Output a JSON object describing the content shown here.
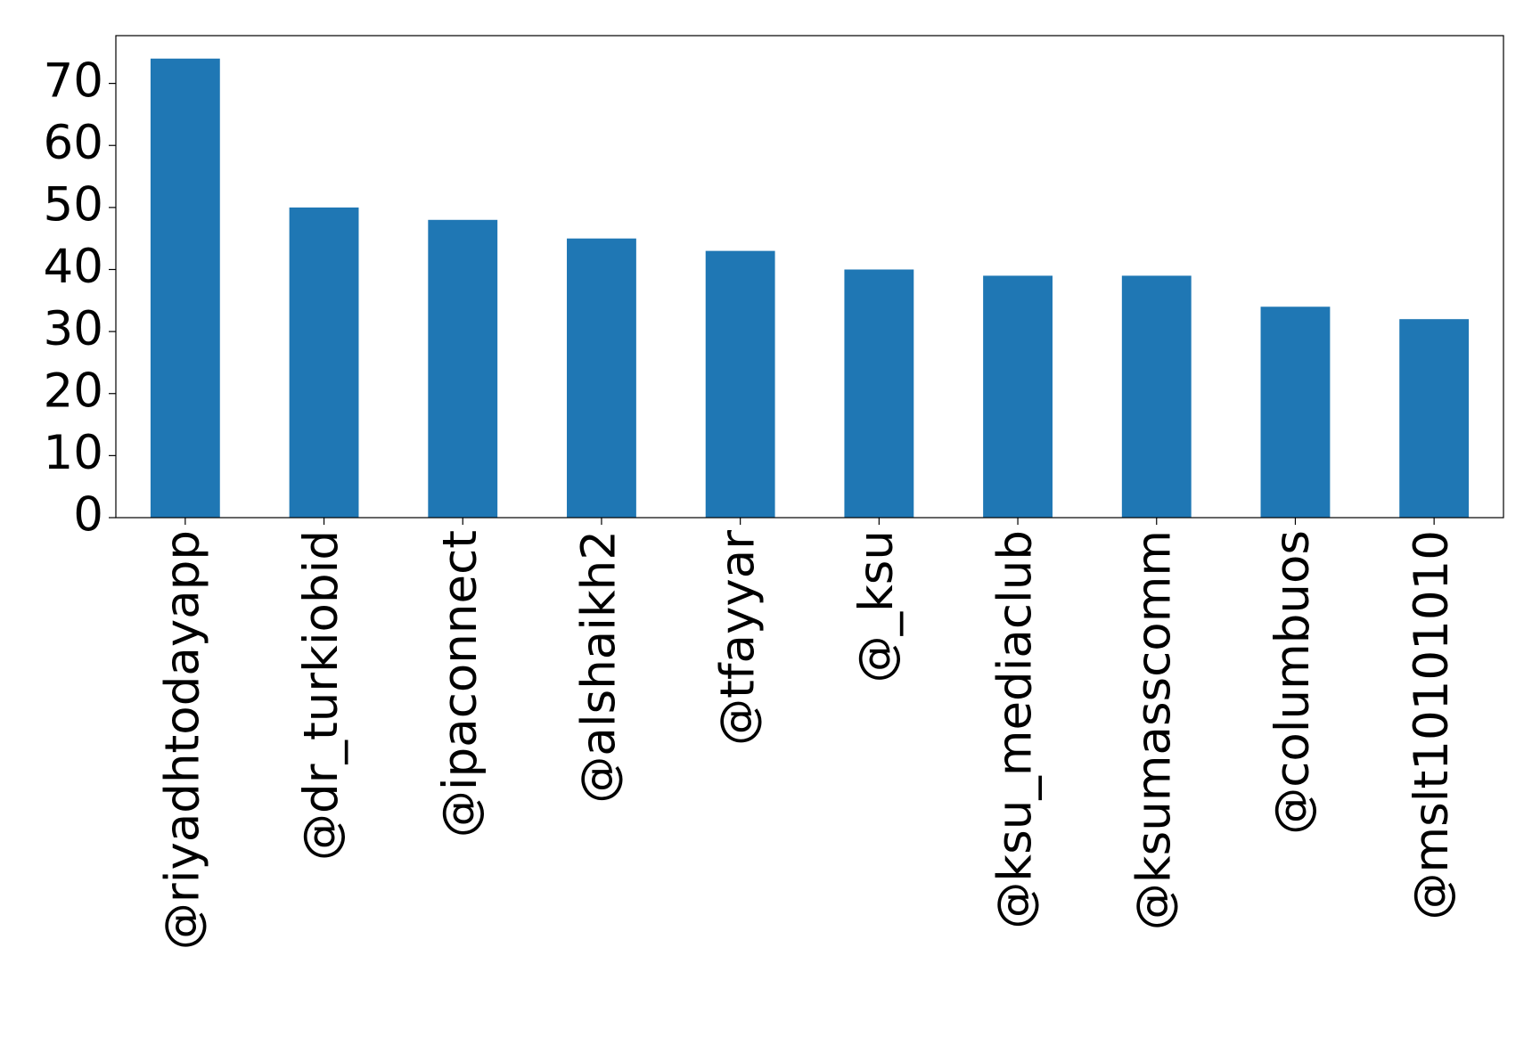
{
  "chart_data": {
    "type": "bar",
    "categories": [
      "@riyadhtodayapp",
      "@dr_turkiobid",
      "@ipaconnect",
      "@alshaikh2",
      "@tfayyar",
      "@_ksu",
      "@ksu_mediaclub",
      "@ksumasscomm",
      "@columbuos",
      "@mslt10101010"
    ],
    "values": [
      74,
      50,
      48,
      45,
      43,
      40,
      39,
      39,
      34,
      32
    ],
    "color": "#1f77b4",
    "ylim": [
      0,
      77.7
    ],
    "yticks": [
      0,
      10,
      20,
      30,
      40,
      50,
      60,
      70
    ],
    "grid": false
  }
}
